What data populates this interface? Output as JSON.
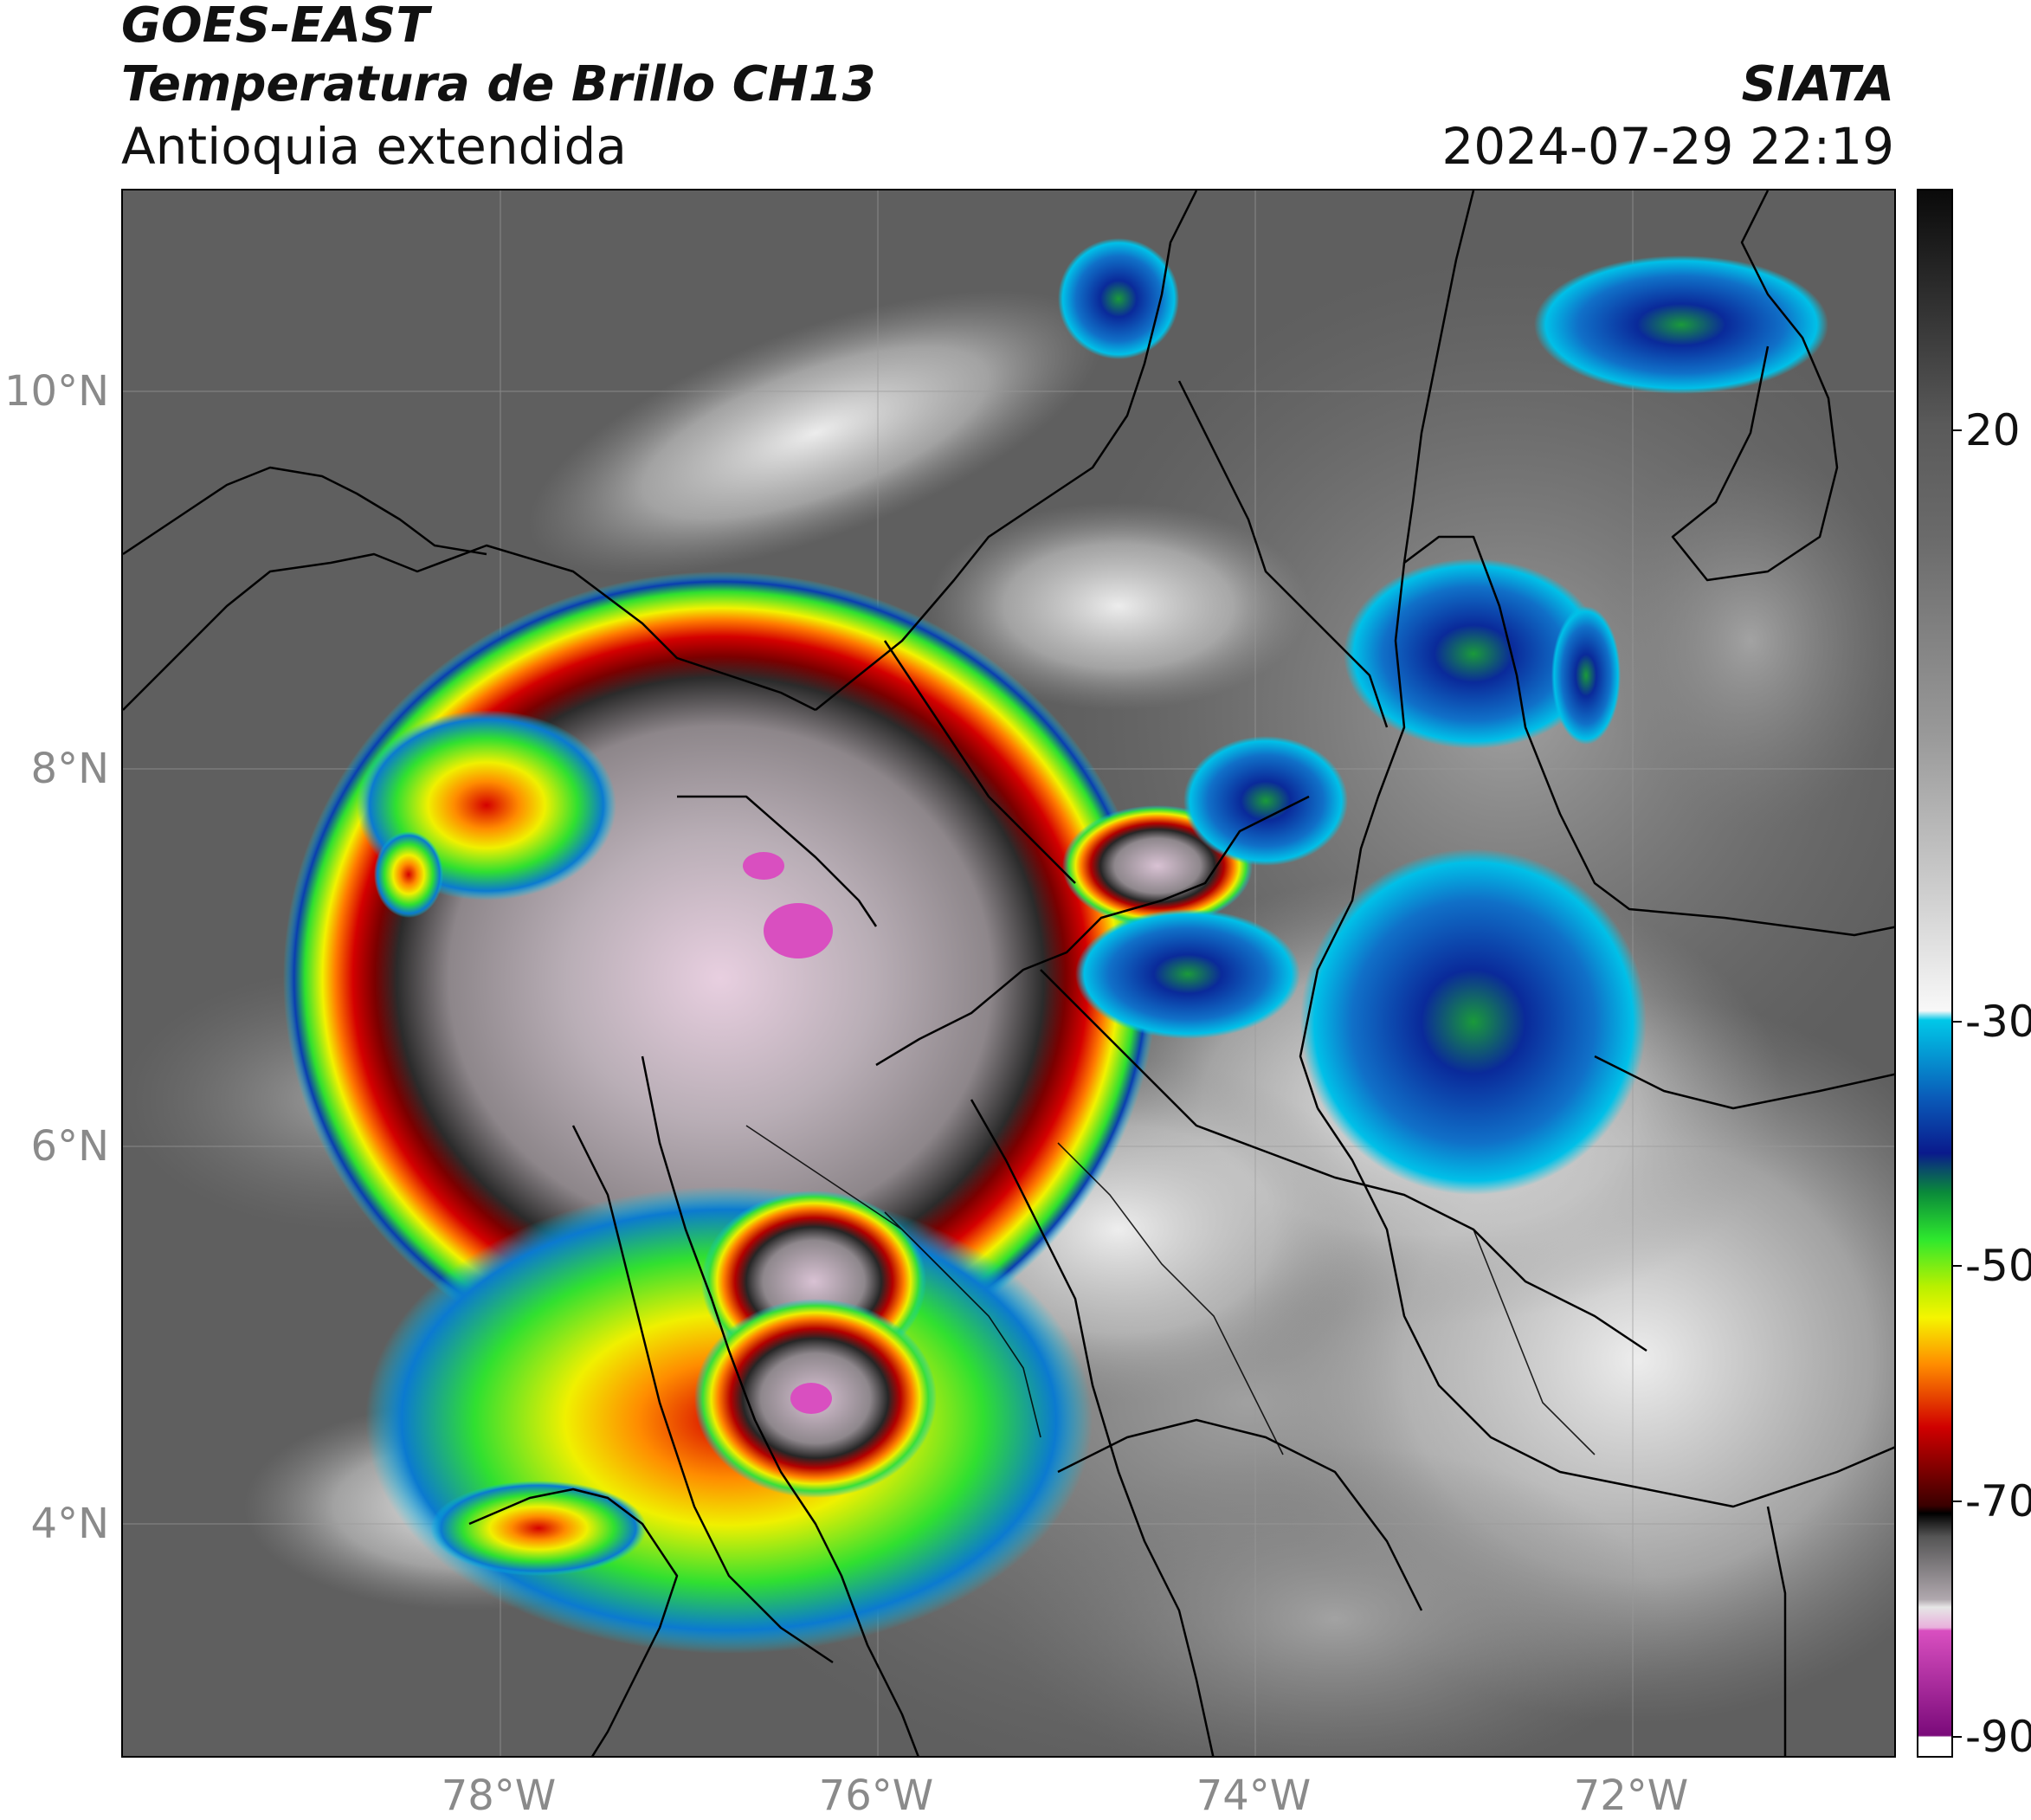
{
  "header": {
    "satellite": "GOES-EAST",
    "product": "Temperatura de Brillo CH13",
    "region": "Antioquia extendida",
    "institution": "SIATA",
    "datetime": "2024-07-29 22:19"
  },
  "map": {
    "latitude_labels": [
      "10°N",
      "8°N",
      "6°N",
      "4°N"
    ],
    "longitude_labels": [
      "78°W",
      "76°W",
      "74°W",
      "72°W"
    ],
    "extent": {
      "lon_min": -80.0,
      "lon_max": -70.6,
      "lat_min": 2.55,
      "lat_max": 11.05
    }
  },
  "colorbar": {
    "ticks": [
      "20",
      "-30",
      "-50",
      "-70",
      "-90"
    ],
    "range": [
      -90,
      40
    ],
    "colors": {
      "cold_magenta": "#d94fc0",
      "light_gray": "#e6e6e6",
      "black": "#000000",
      "red": "#d00000",
      "orange": "#ff8c00",
      "yellow": "#f5f500",
      "green": "#2ee82e",
      "dark_blue": "#0a1a8c",
      "cyan": "#00c8e8",
      "warm_gray": "#5a5a5a"
    }
  },
  "icons": {
    "map": "satellite-brightness-temperature-map"
  }
}
